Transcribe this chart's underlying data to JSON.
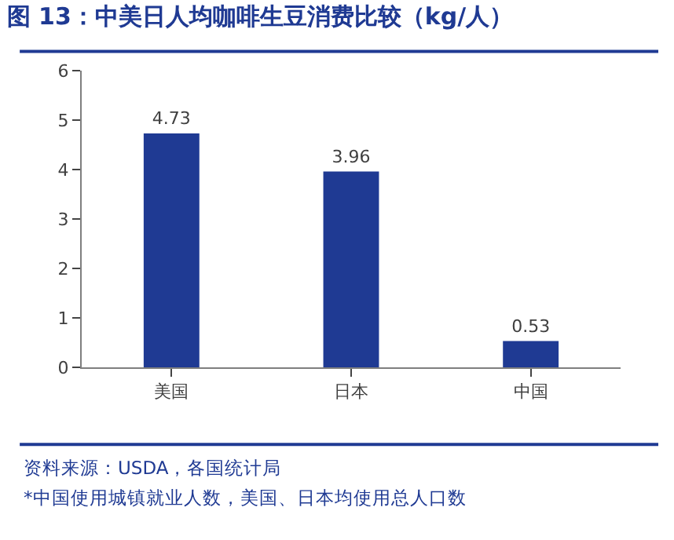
{
  "chart_data": {
    "type": "bar",
    "title": "图 13：中美日人均咖啡生豆消费比较（kg/人）",
    "categories": [
      "美国",
      "日本",
      "中国"
    ],
    "values": [
      4.73,
      3.96,
      0.53
    ],
    "color": "#1f3a93",
    "ylim": [
      0,
      6
    ],
    "yticks": [
      0,
      1,
      2,
      3,
      4,
      5,
      6
    ],
    "data_labels": true,
    "annotations": [
      "资料来源：USDA，各国统计局",
      "*中国使用城镇就业人数，美国、日本均使用总人口数"
    ]
  }
}
